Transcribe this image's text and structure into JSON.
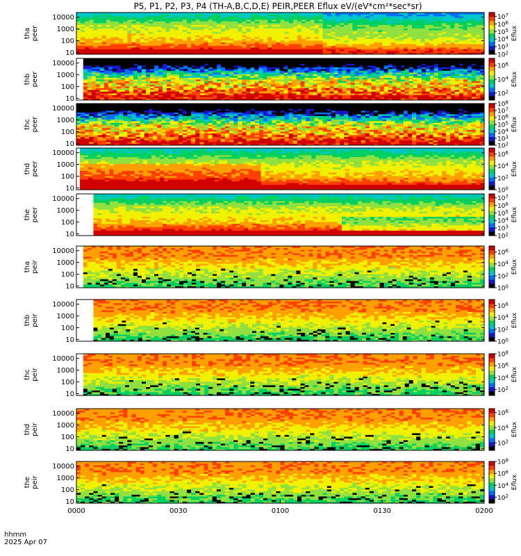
{
  "chart_data": {
    "type": "heatmap",
    "title": "P5, P1, P2, P3, P4 (TH-A,B,C,D,E) PEIR,PEER Eflux eV/(eV*cm²*sec*sr)",
    "date": "2025 Apr 07",
    "xlabel": "hhmm",
    "x_ticks": [
      "0000",
      "0030",
      "0100",
      "0130",
      "0200"
    ],
    "x_range_minutes": [
      0,
      120
    ],
    "colorbar_label": "Eflux",
    "colorscale": [
      "#000000",
      "#1818c8",
      "#0070ff",
      "#00c8c8",
      "#00d060",
      "#90e040",
      "#f0f000",
      "#ffa000",
      "#ff4000",
      "#d00000"
    ],
    "panels": [
      {
        "line1": "tha",
        "line2": "peer",
        "species": "electron",
        "y_ticks": [
          "10",
          "100",
          "1000",
          "10000"
        ],
        "y_range": [
          7,
          25000
        ],
        "cb_ticks": [
          {
            "text": "10",
            "exp": "2"
          },
          {
            "text": "10",
            "exp": "3"
          },
          {
            "text": "10",
            "exp": "4"
          },
          {
            "text": "10",
            "exp": "5"
          },
          {
            "text": "10",
            "exp": "6"
          },
          {
            "text": "10",
            "exp": "7"
          }
        ],
        "cb_range": [
          2,
          7.5
        ],
        "data_start_minute": 0
      },
      {
        "line1": "thb",
        "line2": "peer",
        "species": "electron",
        "y_ticks": [
          "10",
          "100",
          "1000",
          "10000"
        ],
        "y_range": [
          7,
          25000
        ],
        "cb_ticks": [
          {
            "text": "10",
            "exp": "2"
          },
          {
            "text": "10",
            "exp": "4"
          },
          {
            "text": "10",
            "exp": "6"
          }
        ],
        "cb_range": [
          1,
          7
        ],
        "data_start_minute": 2
      },
      {
        "line1": "thc",
        "line2": "peer",
        "species": "electron",
        "y_ticks": [
          "10",
          "100",
          "1000",
          "10000"
        ],
        "y_range": [
          7,
          25000
        ],
        "cb_ticks": [
          {
            "text": "10",
            "exp": "2"
          },
          {
            "text": "10",
            "exp": "3"
          },
          {
            "text": "10",
            "exp": "4"
          },
          {
            "text": "10",
            "exp": "5"
          },
          {
            "text": "10",
            "exp": "6"
          },
          {
            "text": "10",
            "exp": "7"
          },
          {
            "text": "10",
            "exp": "8"
          }
        ],
        "cb_range": [
          2,
          8
        ],
        "data_start_minute": 0
      },
      {
        "line1": "thd",
        "line2": "peer",
        "species": "electron",
        "y_ticks": [
          "10",
          "100",
          "1000",
          "10000"
        ],
        "y_range": [
          7,
          25000
        ],
        "cb_ticks": [
          {
            "text": "10",
            "exp": "0"
          },
          {
            "text": "10",
            "exp": "2"
          },
          {
            "text": "10",
            "exp": "4"
          },
          {
            "text": "10",
            "exp": "6"
          }
        ],
        "cb_range": [
          0,
          7
        ],
        "data_start_minute": 1
      },
      {
        "line1": "the",
        "line2": "peer",
        "species": "electron",
        "y_ticks": [
          "10",
          "100",
          "1000",
          "10000"
        ],
        "y_range": [
          7,
          25000
        ],
        "cb_ticks": [
          {
            "text": "10",
            "exp": "2"
          },
          {
            "text": "10",
            "exp": "3"
          },
          {
            "text": "10",
            "exp": "4"
          },
          {
            "text": "10",
            "exp": "5"
          },
          {
            "text": "10",
            "exp": "6"
          },
          {
            "text": "10",
            "exp": "7"
          }
        ],
        "cb_range": [
          2,
          7.5
        ],
        "data_start_minute": 5
      },
      {
        "line1": "tha",
        "line2": "peir",
        "species": "ion",
        "y_ticks": [
          "10",
          "100",
          "1000",
          "10000"
        ],
        "y_range": [
          7,
          25000
        ],
        "cb_ticks": [
          {
            "text": "10",
            "exp": "0"
          },
          {
            "text": "10",
            "exp": "2"
          },
          {
            "text": "10",
            "exp": "4"
          },
          {
            "text": "10",
            "exp": "6"
          }
        ],
        "cb_range": [
          0,
          7
        ],
        "data_start_minute": 2
      },
      {
        "line1": "thb",
        "line2": "peir",
        "species": "ion",
        "y_ticks": [
          "10",
          "100",
          "1000",
          "10000"
        ],
        "y_range": [
          7,
          25000
        ],
        "cb_ticks": [
          {
            "text": "10",
            "exp": "0"
          },
          {
            "text": "10",
            "exp": "2"
          },
          {
            "text": "10",
            "exp": "4"
          },
          {
            "text": "10",
            "exp": "6"
          }
        ],
        "cb_range": [
          0,
          7
        ],
        "data_start_minute": 5
      },
      {
        "line1": "thc",
        "line2": "peir",
        "species": "ion",
        "y_ticks": [
          "10",
          "100",
          "1000",
          "10000"
        ],
        "y_range": [
          7,
          25000
        ],
        "cb_ticks": [
          {
            "text": "10",
            "exp": "2"
          },
          {
            "text": "10",
            "exp": "4"
          },
          {
            "text": "10",
            "exp": "6"
          },
          {
            "text": "10",
            "exp": "8"
          }
        ],
        "cb_range": [
          1,
          8
        ],
        "data_start_minute": 2
      },
      {
        "line1": "thd",
        "line2": "peir",
        "species": "ion",
        "y_ticks": [
          "10",
          "100",
          "1000",
          "10000"
        ],
        "y_range": [
          7,
          25000
        ],
        "cb_ticks": [
          {
            "text": "10",
            "exp": "2"
          },
          {
            "text": "10",
            "exp": "4"
          },
          {
            "text": "10",
            "exp": "6"
          }
        ],
        "cb_range": [
          1,
          6.5
        ],
        "data_start_minute": 0
      },
      {
        "line1": "the",
        "line2": "peir",
        "species": "ion",
        "y_ticks": [
          "10",
          "100",
          "1000",
          "10000"
        ],
        "y_range": [
          7,
          25000
        ],
        "cb_ticks": [
          {
            "text": "10",
            "exp": "2"
          },
          {
            "text": "10",
            "exp": "4"
          },
          {
            "text": "10",
            "exp": "6"
          },
          {
            "text": "10",
            "exp": "8"
          }
        ],
        "cb_range": [
          1,
          8
        ],
        "data_start_minute": 0
      }
    ]
  }
}
